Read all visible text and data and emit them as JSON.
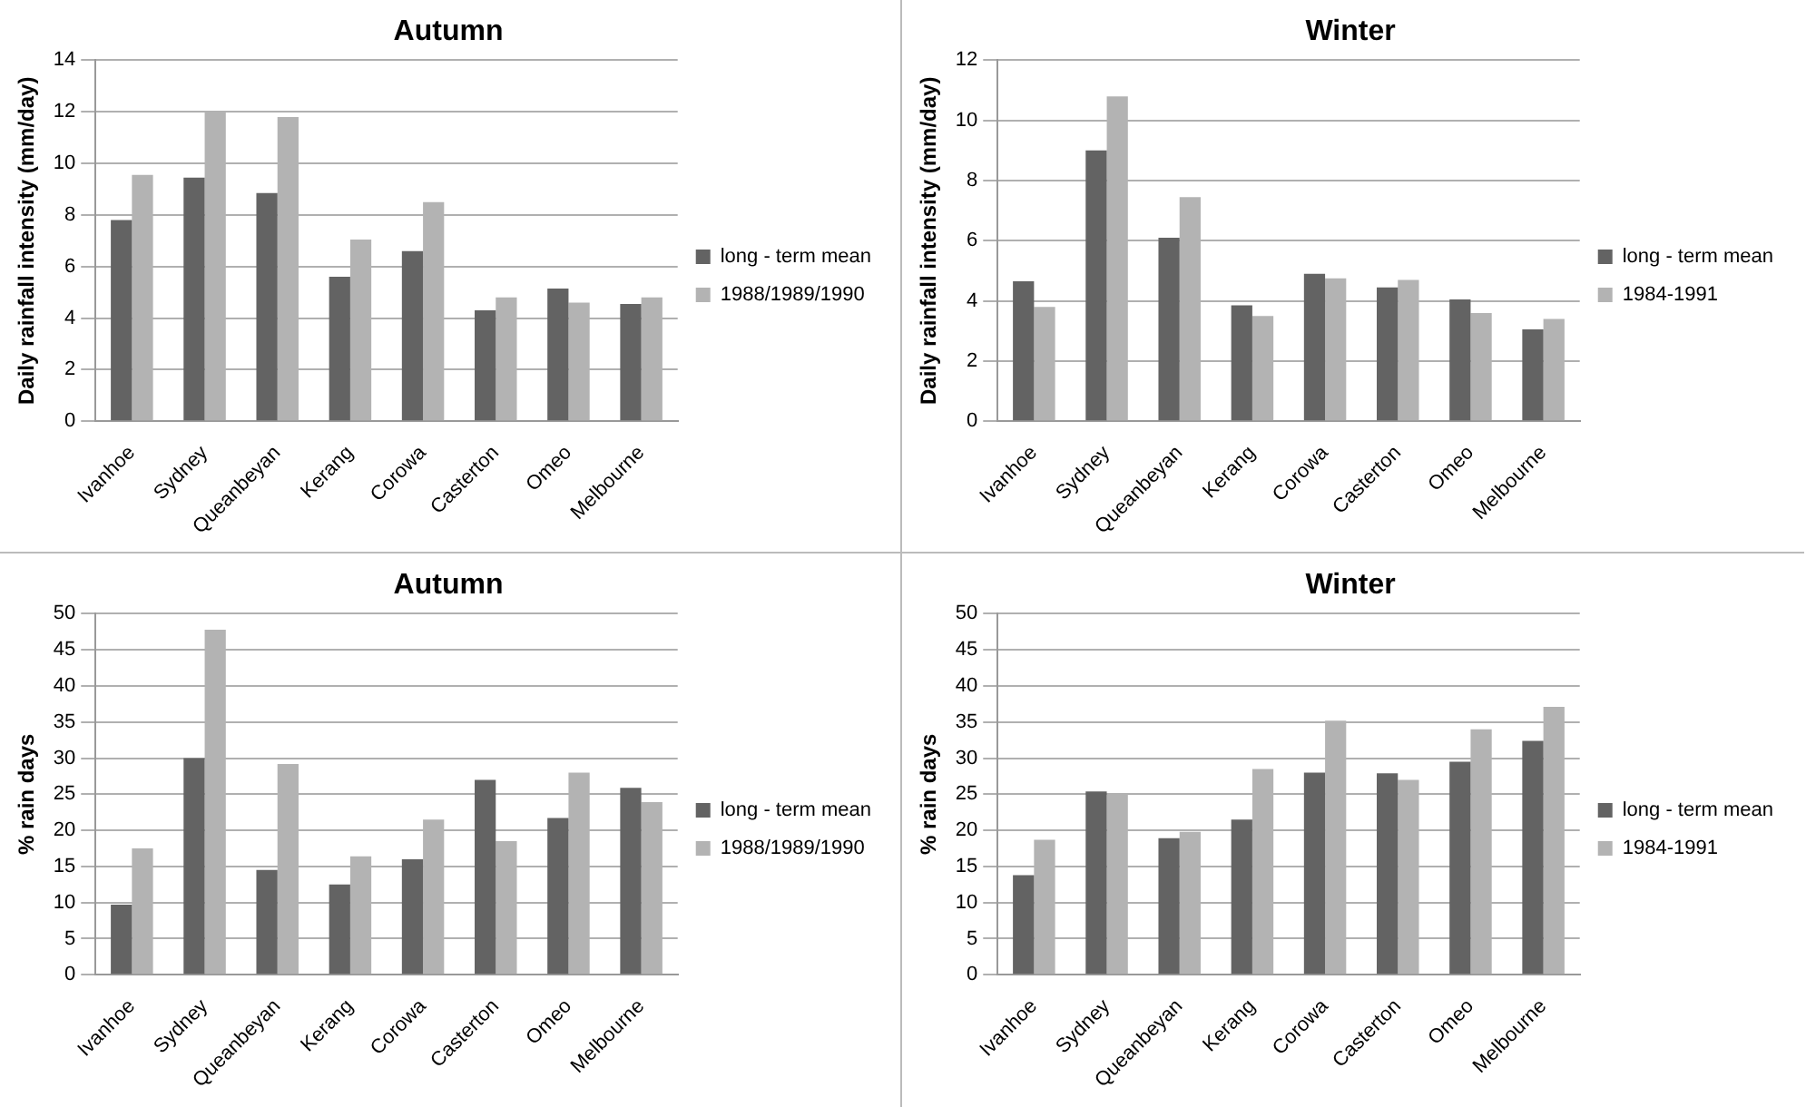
{
  "chart_data": [
    {
      "type": "bar",
      "title": "Autumn",
      "ylabel": "Daily rainfall intensity (mm/day)",
      "categories": [
        "Ivanhoe",
        "Sydney",
        "Queanbeyan",
        "Kerang",
        "Corowa",
        "Casterton",
        "Omeo",
        "Melbourne"
      ],
      "series": [
        {
          "name": "long - term mean",
          "color": "#636363",
          "values": [
            7.8,
            9.45,
            8.85,
            5.6,
            6.6,
            4.3,
            5.15,
            4.55
          ]
        },
        {
          "name": "1988/1989/1990",
          "color": "#b3b3b3",
          "values": [
            9.55,
            12.0,
            11.8,
            7.05,
            8.5,
            4.8,
            4.6,
            4.8
          ]
        }
      ],
      "ylim": [
        0,
        14
      ],
      "yticks": [
        0,
        2,
        4,
        6,
        8,
        10,
        12,
        14
      ],
      "grid": "y",
      "legend": "right"
    },
    {
      "type": "bar",
      "title": "Winter",
      "ylabel": "Daily rainfall intensity (mm/day)",
      "categories": [
        "Ivanhoe",
        "Sydney",
        "Queanbeyan",
        "Kerang",
        "Corowa",
        "Casterton",
        "Omeo",
        "Melbourne"
      ],
      "series": [
        {
          "name": "long - term mean",
          "color": "#636363",
          "values": [
            4.65,
            9.0,
            6.1,
            3.85,
            4.9,
            4.45,
            4.05,
            3.05
          ]
        },
        {
          "name": "1984-1991",
          "color": "#b3b3b3",
          "values": [
            3.8,
            10.8,
            7.45,
            3.5,
            4.75,
            4.7,
            3.6,
            3.4
          ]
        }
      ],
      "ylim": [
        0,
        12
      ],
      "yticks": [
        0,
        2,
        4,
        6,
        8,
        10,
        12
      ],
      "grid": "y",
      "legend": "right"
    },
    {
      "type": "bar",
      "title": "Autumn",
      "ylabel": "% rain days",
      "categories": [
        "Ivanhoe",
        "Sydney",
        "Queanbeyan",
        "Kerang",
        "Corowa",
        "Casterton",
        "Omeo",
        "Melbourne"
      ],
      "series": [
        {
          "name": "long - term mean",
          "color": "#636363",
          "values": [
            9.7,
            30,
            14.5,
            12.5,
            16,
            27,
            21.7,
            25.9
          ]
        },
        {
          "name": "1988/1989/1990",
          "color": "#b3b3b3",
          "values": [
            17.5,
            47.8,
            29.2,
            16.4,
            21.5,
            18.5,
            28,
            23.9
          ]
        }
      ],
      "ylim": [
        0,
        50
      ],
      "yticks": [
        0,
        5,
        10,
        15,
        20,
        25,
        30,
        35,
        40,
        45,
        50
      ],
      "grid": "y",
      "legend": "right"
    },
    {
      "type": "bar",
      "title": "Winter",
      "ylabel": "% rain days",
      "categories": [
        "Ivanhoe",
        "Sydney",
        "Queanbeyan",
        "Kerang",
        "Corowa",
        "Casterton",
        "Omeo",
        "Melbourne"
      ],
      "series": [
        {
          "name": "long - term mean",
          "color": "#636363",
          "values": [
            13.8,
            25.4,
            18.9,
            21.5,
            28,
            27.9,
            29.5,
            32.4
          ]
        },
        {
          "name": "1984-1991",
          "color": "#b3b3b3",
          "values": [
            18.7,
            25,
            19.8,
            28.5,
            35.2,
            27,
            34,
            37.1
          ]
        }
      ],
      "ylim": [
        0,
        50
      ],
      "yticks": [
        0,
        5,
        10,
        15,
        20,
        25,
        30,
        35,
        40,
        45,
        50
      ],
      "grid": "y",
      "legend": "right"
    }
  ]
}
